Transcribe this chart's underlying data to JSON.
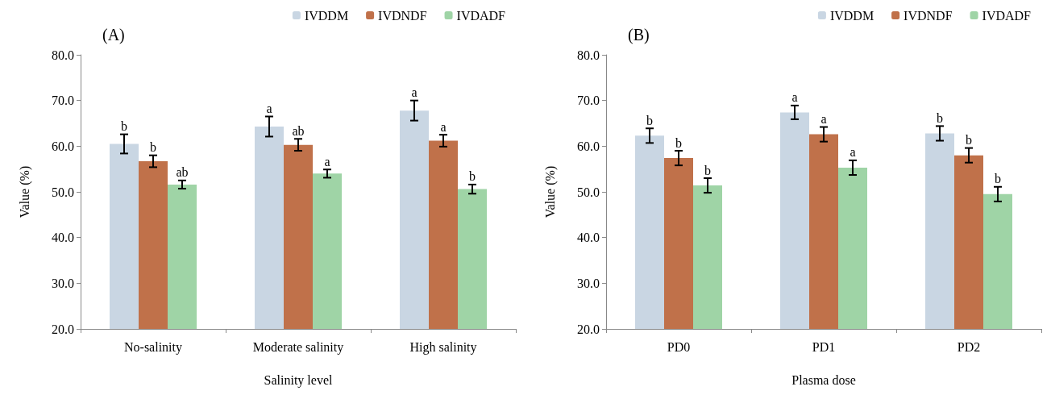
{
  "chart_data": [
    {
      "type": "bar",
      "title": "(A)",
      "xlabel": "Salinity level",
      "ylabel": "Value (%)",
      "categories": [
        "No-salinity",
        "Moderate salinity",
        "High salinity"
      ],
      "series": [
        {
          "name": "IVDDM",
          "color": "#c9d6e3",
          "values": [
            60.5,
            64.3,
            67.8
          ],
          "errors": [
            2.1,
            2.2,
            2.2
          ],
          "value_labels": [
            "b",
            "a",
            "a"
          ]
        },
        {
          "name": "IVDNDF",
          "color": "#c0714a",
          "values": [
            56.7,
            60.3,
            61.2
          ],
          "errors": [
            1.3,
            1.3,
            1.3
          ],
          "value_labels": [
            "b",
            "ab",
            "a"
          ]
        },
        {
          "name": "IVDADF",
          "color": "#9fd4a6",
          "values": [
            51.6,
            54.0,
            50.6
          ],
          "errors": [
            0.9,
            0.9,
            1.0
          ],
          "value_labels": [
            "ab",
            "a",
            "b"
          ]
        }
      ],
      "ylim": [
        20,
        80
      ],
      "yticks": [
        {
          "value": 20,
          "label": "20.0"
        },
        {
          "value": 30,
          "label": "30.0"
        },
        {
          "value": 40,
          "label": "40.0"
        },
        {
          "value": 50,
          "label": "50.0"
        },
        {
          "value": 60,
          "label": "60.0"
        },
        {
          "value": 70,
          "label": "70.0"
        },
        {
          "value": 80,
          "label": "80.0"
        }
      ],
      "grid": false,
      "legend": "top right"
    },
    {
      "type": "bar",
      "title": "(B)",
      "xlabel": "Plasma dose",
      "ylabel": "Value (%)",
      "categories": [
        "PD0",
        "PD1",
        "PD2"
      ],
      "series": [
        {
          "name": "IVDDM",
          "color": "#c9d6e3",
          "values": [
            62.3,
            67.4,
            62.8
          ],
          "errors": [
            1.6,
            1.5,
            1.6
          ],
          "value_labels": [
            "b",
            "a",
            "b"
          ]
        },
        {
          "name": "IVDNDF",
          "color": "#c0714a",
          "values": [
            57.4,
            62.6,
            58.0
          ],
          "errors": [
            1.6,
            1.6,
            1.6
          ],
          "value_labels": [
            "b",
            "a",
            "b"
          ]
        },
        {
          "name": "IVDADF",
          "color": "#9fd4a6",
          "values": [
            51.4,
            55.3,
            49.5
          ],
          "errors": [
            1.6,
            1.6,
            1.6
          ],
          "value_labels": [
            "b",
            "a",
            "b"
          ]
        }
      ],
      "ylim": [
        20,
        80
      ],
      "yticks": [
        {
          "value": 20,
          "label": "20.0"
        },
        {
          "value": 30,
          "label": "30.0"
        },
        {
          "value": 40,
          "label": "40.0"
        },
        {
          "value": 50,
          "label": "50.0"
        },
        {
          "value": 60,
          "label": "60.0"
        },
        {
          "value": 70,
          "label": "70.0"
        },
        {
          "value": 80,
          "label": "80.0"
        }
      ],
      "grid": false,
      "legend": "top right"
    }
  ]
}
